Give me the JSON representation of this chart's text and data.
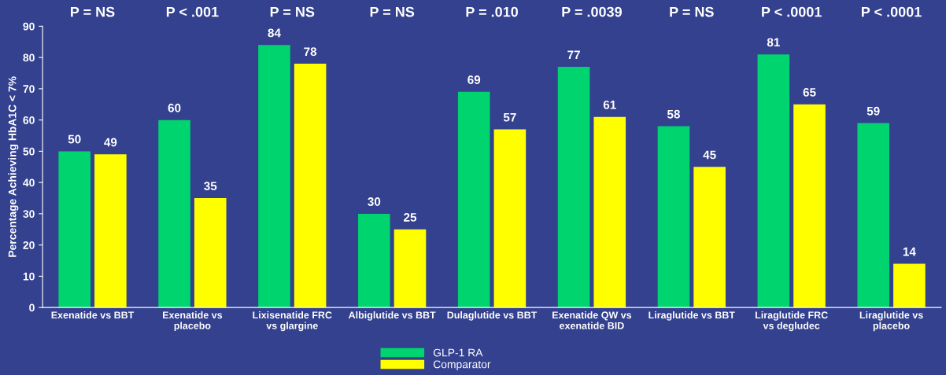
{
  "chart_data": {
    "type": "bar",
    "ylabel": "Percentage Achieving HbA1C < 7%",
    "categories": [
      "Exenatide vs BBT",
      "Exenatide vs\nplacebo",
      "Lixisenatide FRC\nvs glargine",
      "Albiglutide vs BBT",
      "Dulaglutide vs BBT",
      "Exenatide QW vs\nexenatide BID",
      "Liraglutide vs BBT",
      "Liraglutide FRC\nvs degludec",
      "Liraglutide vs\nplacebo"
    ],
    "series": [
      {
        "name": "GLP-1 RA",
        "color": "#00d46e",
        "values": [
          50,
          60,
          84,
          30,
          69,
          77,
          58,
          81,
          59
        ]
      },
      {
        "name": "Comparator",
        "color": "#ffff00",
        "values": [
          49,
          35,
          78,
          25,
          57,
          61,
          45,
          65,
          14
        ]
      }
    ],
    "ylim": [
      0,
      90
    ],
    "yticks": [
      0,
      10,
      20,
      30,
      40,
      50,
      60,
      70,
      80,
      90
    ],
    "data_labels": true,
    "legend": "bottom",
    "grid": false,
    "annotations": [
      "P = NS",
      "P < .001",
      "P = NS",
      "P = NS",
      "P = .010",
      "P = .0039",
      "P = NS",
      "P < .0001",
      "P < .0001"
    ]
  }
}
